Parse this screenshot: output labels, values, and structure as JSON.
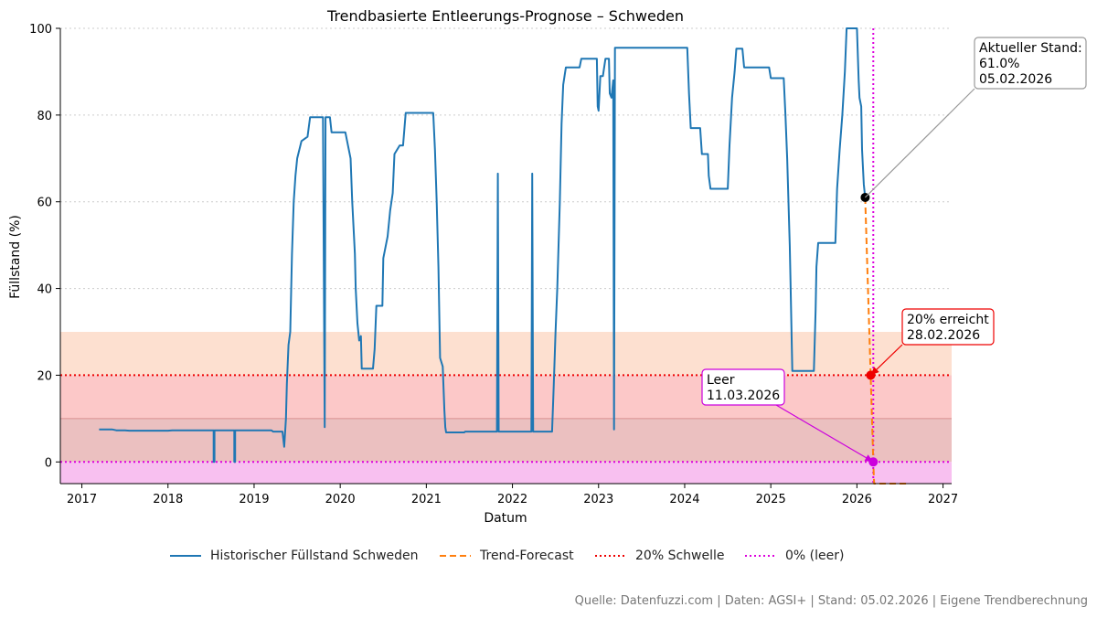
{
  "chart_data": {
    "type": "line",
    "title": "Trendbasierte Entleerungs-Prognose – Schweden",
    "xlabel": "Datum",
    "ylabel": "Füllstand (%)",
    "xlim": [
      2016.75,
      2027.1
    ],
    "ylim": [
      -5,
      100
    ],
    "x_ticks": [
      2017,
      2018,
      2019,
      2020,
      2021,
      2022,
      2023,
      2024,
      2025,
      2026,
      2027
    ],
    "y_ticks": [
      0,
      20,
      40,
      60,
      80,
      100
    ],
    "grid": "y-dotted",
    "bands": [
      {
        "name": "orange-zone",
        "from": 20,
        "to": 30,
        "color": "#fde0d0"
      },
      {
        "name": "red-zone",
        "from": 10,
        "to": 20,
        "color": "#fcc8c8"
      },
      {
        "name": "critical-zone",
        "from": 0,
        "to": 10,
        "color": "#ebc0c0"
      },
      {
        "name": "empty-zone",
        "from": -5,
        "to": 0,
        "color": "#f8c0f0"
      }
    ],
    "series": [
      {
        "name": "Historischer Füllstand Schweden",
        "color": "#1f77b4",
        "style": "solid",
        "points": [
          [
            2017.2,
            7.5
          ],
          [
            2017.35,
            7.5
          ],
          [
            2017.4,
            7.3
          ],
          [
            2017.5,
            7.3
          ],
          [
            2017.55,
            7.2
          ],
          [
            2018.0,
            7.2
          ],
          [
            2018.05,
            7.3
          ],
          [
            2018.53,
            7.3
          ],
          [
            2018.53,
            0
          ],
          [
            2018.54,
            0
          ],
          [
            2018.54,
            7.3
          ],
          [
            2018.77,
            7.3
          ],
          [
            2018.77,
            0
          ],
          [
            2018.78,
            0
          ],
          [
            2018.78,
            7.3
          ],
          [
            2019.2,
            7.3
          ],
          [
            2019.22,
            7.0
          ],
          [
            2019.33,
            7.0
          ],
          [
            2019.35,
            3.5
          ],
          [
            2019.37,
            10
          ],
          [
            2019.38,
            18
          ],
          [
            2019.4,
            27
          ],
          [
            2019.42,
            30
          ],
          [
            2019.44,
            48
          ],
          [
            2019.46,
            60
          ],
          [
            2019.48,
            66
          ],
          [
            2019.5,
            70
          ],
          [
            2019.55,
            74
          ],
          [
            2019.62,
            75
          ],
          [
            2019.65,
            79.5
          ],
          [
            2019.8,
            79.5
          ],
          [
            2019.82,
            8
          ],
          [
            2019.83,
            79.5
          ],
          [
            2019.88,
            79.5
          ],
          [
            2019.9,
            76
          ],
          [
            2020.06,
            76
          ],
          [
            2020.1,
            72
          ],
          [
            2020.12,
            70
          ],
          [
            2020.14,
            60
          ],
          [
            2020.17,
            48
          ],
          [
            2020.18,
            40
          ],
          [
            2020.2,
            32
          ],
          [
            2020.22,
            28
          ],
          [
            2020.24,
            29
          ],
          [
            2020.25,
            21.5
          ],
          [
            2020.38,
            21.5
          ],
          [
            2020.4,
            26
          ],
          [
            2020.42,
            36
          ],
          [
            2020.49,
            36
          ],
          [
            2020.5,
            47
          ],
          [
            2020.55,
            52
          ],
          [
            2020.58,
            58
          ],
          [
            2020.61,
            62
          ],
          [
            2020.63,
            71
          ],
          [
            2020.69,
            73
          ],
          [
            2020.73,
            73
          ],
          [
            2020.76,
            80.5
          ],
          [
            2021.08,
            80.5
          ],
          [
            2021.1,
            72
          ],
          [
            2021.12,
            60
          ],
          [
            2021.14,
            45
          ],
          [
            2021.16,
            24
          ],
          [
            2021.19,
            22
          ],
          [
            2021.21,
            12
          ],
          [
            2021.22,
            8
          ],
          [
            2021.23,
            6.8
          ],
          [
            2021.44,
            6.8
          ],
          [
            2021.45,
            7.0
          ],
          [
            2021.82,
            7.0
          ],
          [
            2021.83,
            66.5
          ],
          [
            2021.84,
            7.0
          ],
          [
            2022.22,
            7.0
          ],
          [
            2022.23,
            66.5
          ],
          [
            2022.24,
            7.0
          ],
          [
            2022.46,
            7.0
          ],
          [
            2022.48,
            18
          ],
          [
            2022.5,
            30
          ],
          [
            2022.52,
            40
          ],
          [
            2022.55,
            60
          ],
          [
            2022.57,
            78
          ],
          [
            2022.59,
            87
          ],
          [
            2022.62,
            91
          ],
          [
            2022.78,
            91
          ],
          [
            2022.8,
            93
          ],
          [
            2022.98,
            93
          ],
          [
            2022.99,
            82
          ],
          [
            2023.0,
            81
          ],
          [
            2023.02,
            89
          ],
          [
            2023.05,
            89
          ],
          [
            2023.08,
            93
          ],
          [
            2023.12,
            93
          ],
          [
            2023.13,
            85
          ],
          [
            2023.15,
            84
          ],
          [
            2023.17,
            88
          ],
          [
            2023.18,
            7.5
          ],
          [
            2023.19,
            95.5
          ],
          [
            2023.7,
            95.5
          ],
          [
            2023.75,
            95.5
          ],
          [
            2024.03,
            95.5
          ],
          [
            2024.05,
            85
          ],
          [
            2024.07,
            77
          ],
          [
            2024.18,
            77
          ],
          [
            2024.2,
            71
          ],
          [
            2024.27,
            71
          ],
          [
            2024.28,
            66
          ],
          [
            2024.3,
            63
          ],
          [
            2024.5,
            63
          ],
          [
            2024.52,
            73
          ],
          [
            2024.55,
            84
          ],
          [
            2024.58,
            90
          ],
          [
            2024.6,
            95.3
          ],
          [
            2024.67,
            95.3
          ],
          [
            2024.69,
            91
          ],
          [
            2024.98,
            91
          ],
          [
            2025.0,
            88.5
          ],
          [
            2025.15,
            88.5
          ],
          [
            2025.17,
            80
          ],
          [
            2025.19,
            70
          ],
          [
            2025.22,
            50
          ],
          [
            2025.23,
            41
          ],
          [
            2025.25,
            21
          ],
          [
            2025.5,
            21
          ],
          [
            2025.52,
            35
          ],
          [
            2025.53,
            45
          ],
          [
            2025.55,
            50.5
          ],
          [
            2025.75,
            50.5
          ],
          [
            2025.77,
            63
          ],
          [
            2025.8,
            72
          ],
          [
            2025.83,
            80
          ],
          [
            2025.86,
            90
          ],
          [
            2025.88,
            100
          ],
          [
            2026.0,
            100
          ],
          [
            2026.02,
            88
          ],
          [
            2026.03,
            84
          ],
          [
            2026.05,
            82
          ],
          [
            2026.06,
            72
          ],
          [
            2026.08,
            64
          ],
          [
            2026.096,
            61
          ]
        ]
      },
      {
        "name": "Trend-Forecast",
        "color": "#ff7f0e",
        "style": "dashed",
        "points": [
          [
            2026.096,
            61
          ],
          [
            2026.16,
            20
          ],
          [
            2026.19,
            0
          ],
          [
            2026.2,
            -5
          ],
          [
            2026.6,
            -5
          ]
        ]
      },
      {
        "name": "20% Schwelle",
        "color": "#ee0000",
        "style": "dotted",
        "hline": 20
      },
      {
        "name": "0% (leer)",
        "color": "#dd00dd",
        "style": "dotted",
        "hline": 0,
        "vline": 2026.19
      }
    ],
    "markers": [
      {
        "name": "current",
        "x": 2026.096,
        "y": 61,
        "color": "#000000"
      },
      {
        "name": "threshold-20",
        "x": 2026.16,
        "y": 20,
        "color": "#ee0000"
      },
      {
        "name": "empty",
        "x": 2026.19,
        "y": 0,
        "color": "#cc00dd"
      }
    ],
    "annotations": [
      {
        "name": "current-annotation",
        "lines": [
          "Aktueller Stand:",
          "61.0%",
          "05.02.2026"
        ],
        "color": "#999999",
        "target": [
          2026.096,
          61
        ],
        "placement": "top-right"
      },
      {
        "name": "threshold-annotation",
        "lines": [
          "20% erreicht",
          "28.02.2026"
        ],
        "color": "#ee0000",
        "target": [
          2026.16,
          20
        ],
        "placement": "right"
      },
      {
        "name": "empty-annotation",
        "lines": [
          "Leer",
          "11.03.2026"
        ],
        "color": "#cc00dd",
        "target": [
          2026.19,
          0
        ],
        "placement": "left"
      }
    ]
  },
  "legend": {
    "items": [
      {
        "label": "Historischer Füllstand Schweden",
        "color": "#1f77b4",
        "style": "solid"
      },
      {
        "label": "Trend-Forecast",
        "color": "#ff7f0e",
        "style": "dashed"
      },
      {
        "label": "20% Schwelle",
        "color": "#ee0000",
        "style": "dotted"
      },
      {
        "label": "0% (leer)",
        "color": "#dd00dd",
        "style": "dotted"
      }
    ]
  },
  "footer": {
    "source": "Quelle: Datenfuzzi.com | Daten: AGSI+ | Stand: 05.02.2026 | Eigene Trendberechnung"
  }
}
